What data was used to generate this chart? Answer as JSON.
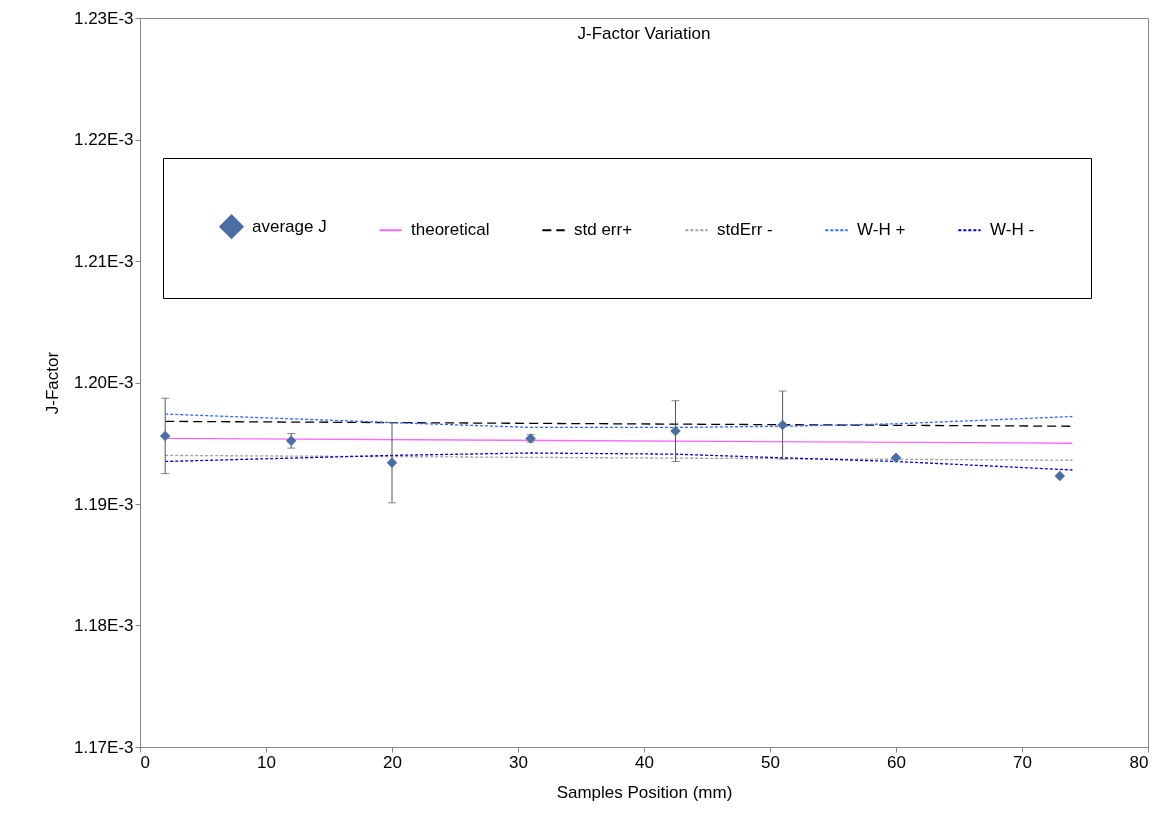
{
  "chart_data": {
    "type": "line",
    "title": "J-Factor Variation",
    "xlabel": "Samples Position (mm)",
    "ylabel": "J-Factor",
    "xlim": [
      0,
      80
    ],
    "xticks": [
      0,
      10,
      20,
      30,
      40,
      50,
      60,
      70,
      80
    ],
    "ylim": [
      0.00117,
      0.00123
    ],
    "yticks": [
      {
        "value": 0.00117,
        "label": "1.17E-3"
      },
      {
        "value": 0.00118,
        "label": "1.18E-3"
      },
      {
        "value": 0.00119,
        "label": "1.19E-3"
      },
      {
        "value": 0.0012,
        "label": "1.20E-3"
      },
      {
        "value": 0.00121,
        "label": "1.21E-3"
      },
      {
        "value": 0.00122,
        "label": "1.22E-3"
      },
      {
        "value": 0.00123,
        "label": "1.23E-3"
      }
    ],
    "grid": false,
    "legend": "top",
    "series": [
      {
        "name": "average J",
        "type": "scatter",
        "marker": "diamond",
        "color": "#4a6fa5",
        "x": [
          2,
          12,
          20,
          31,
          42.5,
          51,
          60,
          73
        ],
        "values": [
          0.0011956,
          0.0011952,
          0.0011934,
          0.0011954,
          0.001196,
          0.0011965,
          0.0011938,
          0.0011923
        ],
        "errors": [
          3.1e-06,
          6e-07,
          3.3e-06,
          3e-07,
          2.5e-06,
          2.8e-06,
          null,
          null
        ]
      },
      {
        "name": "theoretical",
        "type": "line",
        "line_style": "solid",
        "color": "#ff66ff",
        "x": [
          2,
          74
        ],
        "values": [
          0.0011954,
          0.001195
        ]
      },
      {
        "name": "std err+",
        "type": "line",
        "line_style": "dashed",
        "color": "#000000",
        "x": [
          2,
          74
        ],
        "values": [
          0.0011968,
          0.0011964
        ]
      },
      {
        "name": "stdErr -",
        "type": "line",
        "line_style": "dotted",
        "color": "#a0a0a0",
        "x": [
          2,
          74
        ],
        "values": [
          0.001194,
          0.0011936
        ]
      },
      {
        "name": "W-H +",
        "type": "line",
        "line_style": "dotted",
        "color": "#3366ff",
        "x": [
          2,
          20,
          31,
          42.5,
          51,
          60,
          74
        ],
        "values": [
          0.0011974,
          0.0011967,
          0.0011963,
          0.0011963,
          0.0011964,
          0.0011966,
          0.0011972
        ]
      },
      {
        "name": "W-H -",
        "type": "line",
        "line_style": "dotted",
        "color": "#0000cc",
        "x": [
          2,
          20,
          31,
          42.5,
          51,
          60,
          74
        ],
        "values": [
          0.0011935,
          0.001194,
          0.0011942,
          0.0011941,
          0.0011938,
          0.0011935,
          0.0011928
        ]
      }
    ]
  }
}
